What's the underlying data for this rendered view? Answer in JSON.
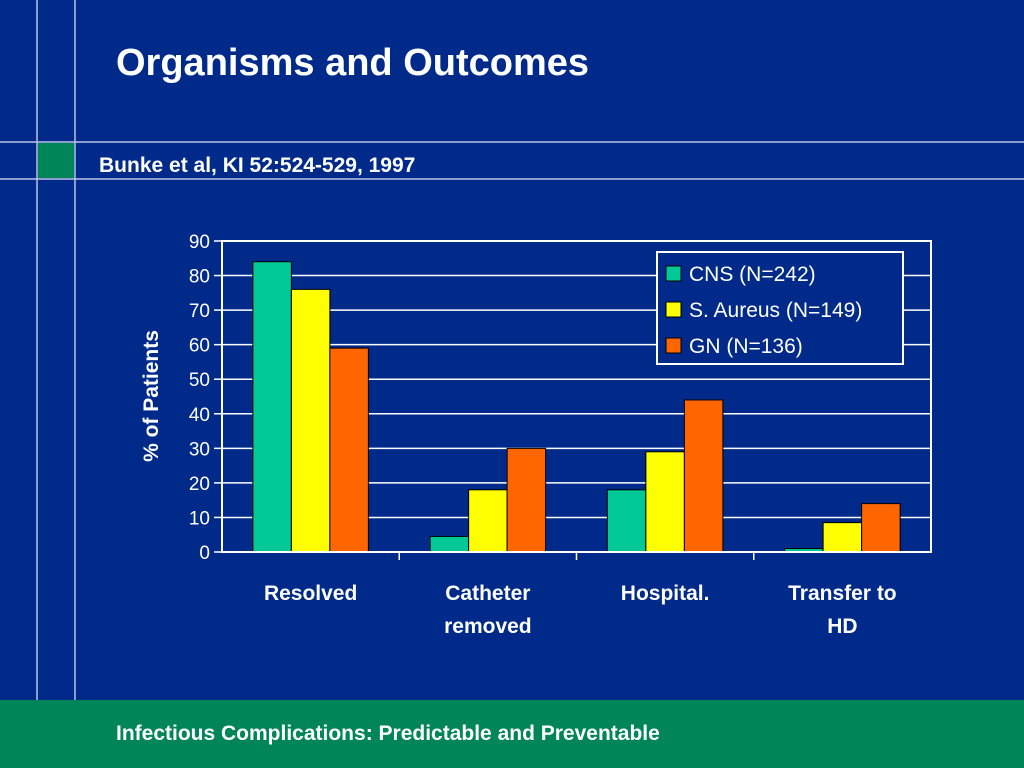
{
  "slide": {
    "title": "Organisms and Outcomes",
    "citation": "Bunke et al, KI 52:524-529, 1997",
    "footer": "Infectious Complications: Predictable and Preventable"
  },
  "colors": {
    "background": "#002a8a",
    "footer_band": "#008558",
    "accent_square": "#008558",
    "frame_lines": "#b9c3e6"
  },
  "chart_data": {
    "type": "bar",
    "title": "",
    "xlabel": "",
    "ylabel": "% of Patients",
    "ylim": [
      0,
      90
    ],
    "yticks": [
      "0",
      "10",
      "20",
      "30",
      "40",
      "50",
      "60",
      "70",
      "80",
      "90"
    ],
    "categories": [
      [
        "Resolved"
      ],
      [
        "Catheter",
        "removed"
      ],
      [
        "Hospital."
      ],
      [
        "Transfer to",
        "HD"
      ]
    ],
    "series": [
      {
        "name": "CNS (N=242)",
        "color": "#00c896",
        "values": [
          84,
          4.5,
          18,
          1
        ]
      },
      {
        "name": "S. Aureus (N=149)",
        "color": "#ffff00",
        "values": [
          76,
          18,
          29,
          8.5
        ]
      },
      {
        "name": "GN (N=136)",
        "color": "#ff6600",
        "values": [
          59,
          30,
          44,
          14
        ]
      }
    ],
    "grid": true,
    "legend_position": "top-right"
  }
}
